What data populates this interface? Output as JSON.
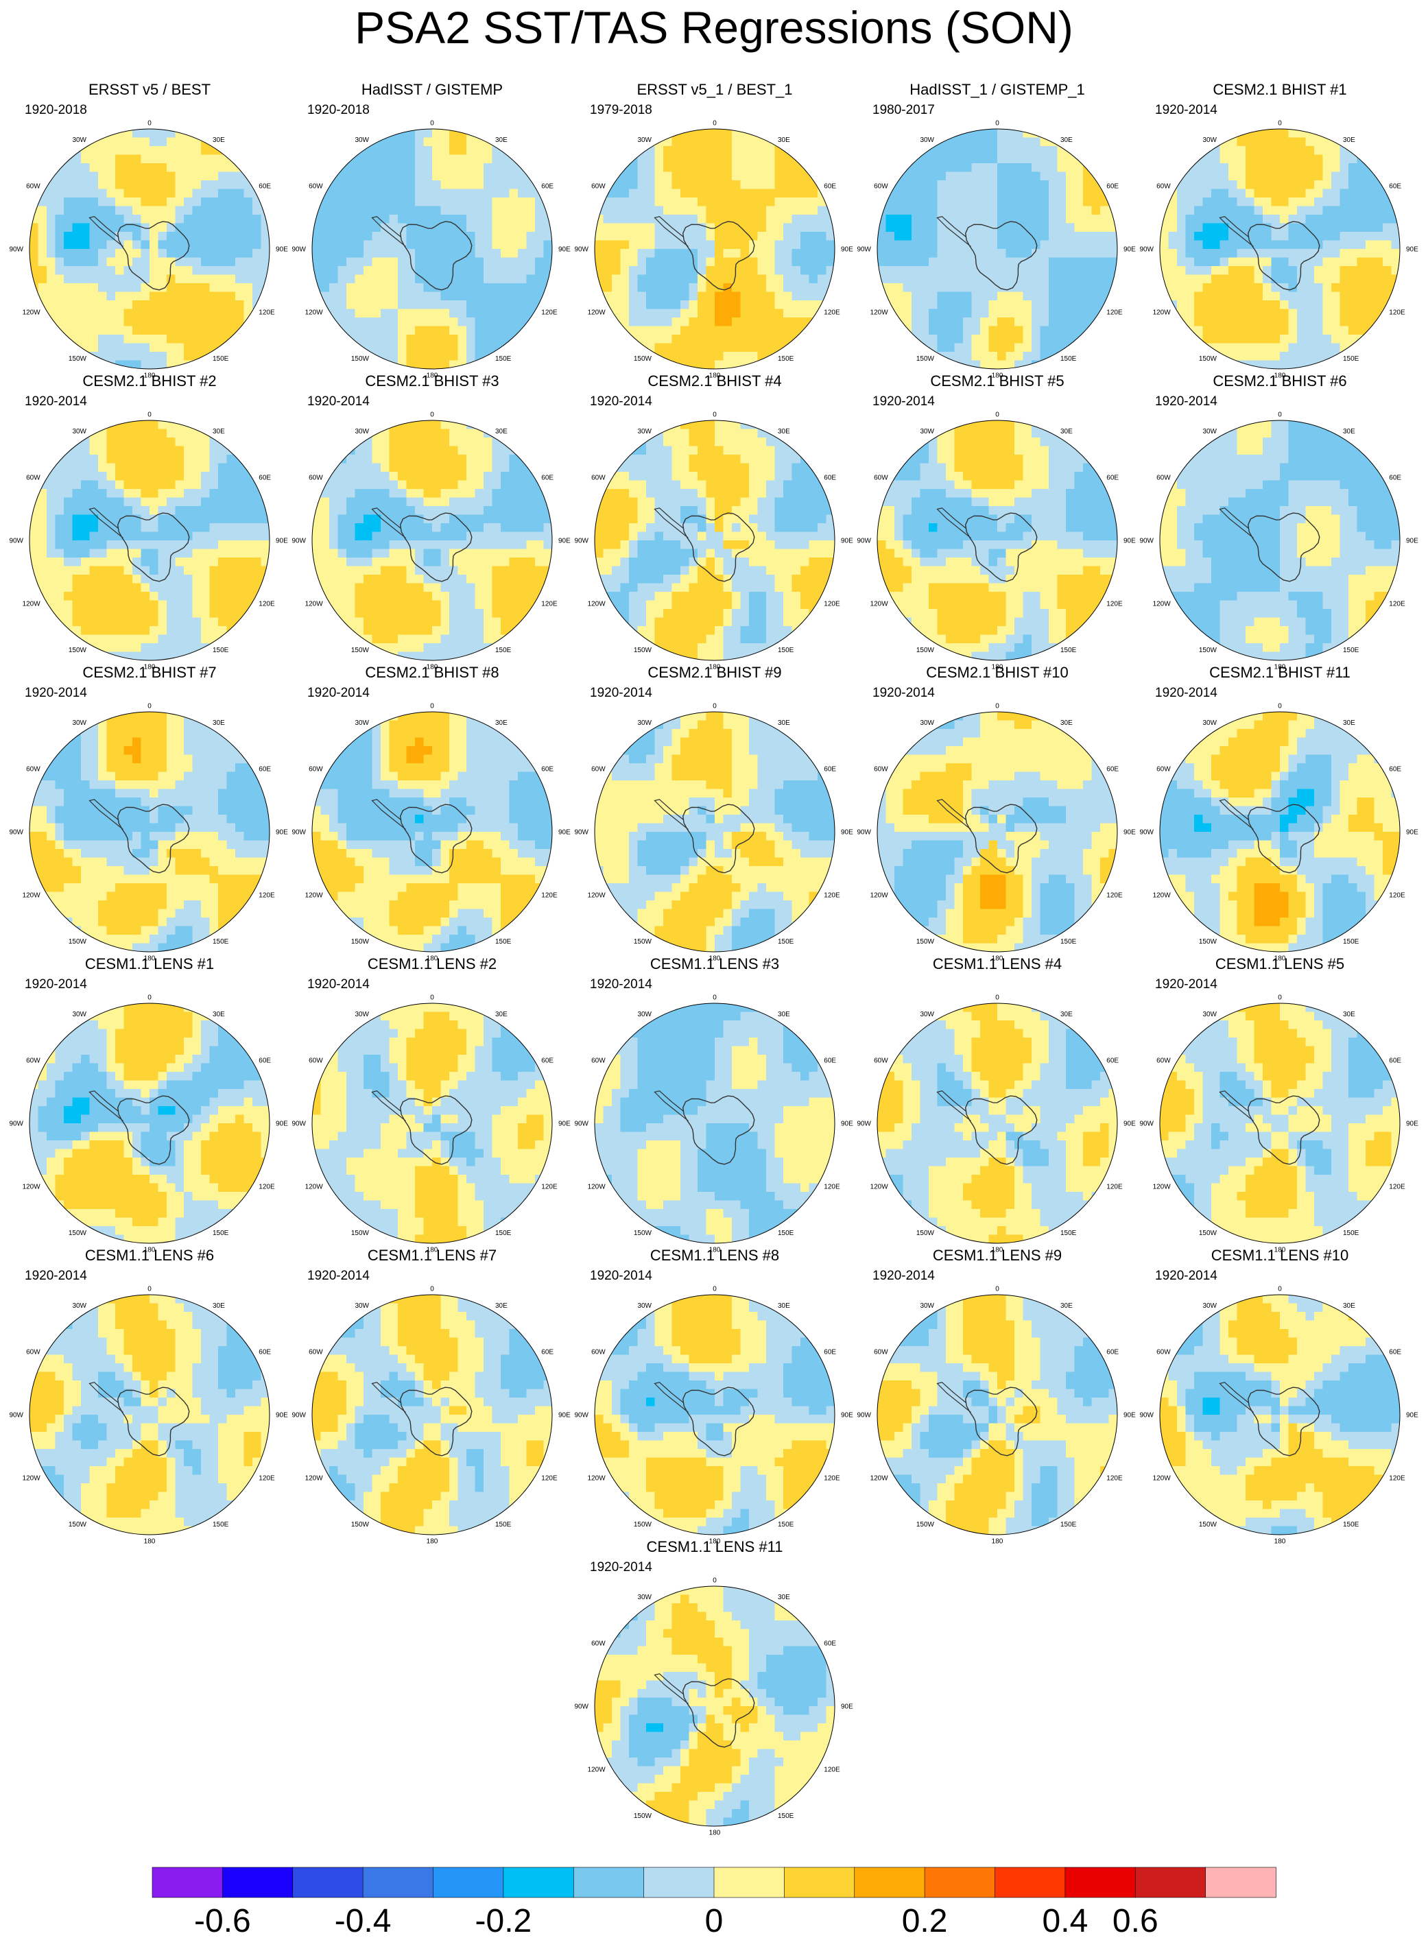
{
  "title": "PSA2 SST/TAS Regressions (SON)",
  "longitude_labels": [
    "0",
    "30E",
    "60E",
    "90E",
    "120E",
    "150E",
    "180",
    "150W",
    "120W",
    "90W",
    "60W",
    "30W"
  ],
  "panels": [
    {
      "title": "ERSST v5 / BEST",
      "years": "1920-2018",
      "pattern": "obs"
    },
    {
      "title": "HadISST / GISTEMP",
      "years": "1920-2018",
      "pattern": "cool"
    },
    {
      "title": "ERSST v5_1 / BEST_1",
      "years": "1979-2018",
      "pattern": "obs2"
    },
    {
      "title": "HadISST_1 / GISTEMP_1",
      "years": "1980-2017",
      "pattern": "cool2"
    },
    {
      "title": "CESM2.1 BHIST #1",
      "years": "1920-2014",
      "pattern": "psa"
    },
    {
      "title": "CESM2.1 BHIST #2",
      "years": "1920-2014",
      "pattern": "psa"
    },
    {
      "title": "CESM2.1 BHIST #3",
      "years": "1920-2014",
      "pattern": "psa"
    },
    {
      "title": "CESM2.1 BHIST #4",
      "years": "1920-2014",
      "pattern": "mild"
    },
    {
      "title": "CESM2.1 BHIST #5",
      "years": "1920-2014",
      "pattern": "psa"
    },
    {
      "title": "CESM2.1 BHIST #6",
      "years": "1920-2014",
      "pattern": "cool2"
    },
    {
      "title": "CESM2.1 BHIST #7",
      "years": "1920-2014",
      "pattern": "psa"
    },
    {
      "title": "CESM2.1 BHIST #8",
      "years": "1920-2014",
      "pattern": "psa"
    },
    {
      "title": "CESM2.1 BHIST #9",
      "years": "1920-2014",
      "pattern": "mild"
    },
    {
      "title": "CESM2.1 BHIST #10",
      "years": "1920-2014",
      "pattern": "mild"
    },
    {
      "title": "CESM2.1 BHIST #11",
      "years": "1920-2014",
      "pattern": "psa"
    },
    {
      "title": "CESM1.1 LENS #1",
      "years": "1920-2014",
      "pattern": "psa"
    },
    {
      "title": "CESM1.1 LENS #2",
      "years": "1920-2014",
      "pattern": "mild"
    },
    {
      "title": "CESM1.1 LENS #3",
      "years": "1920-2014",
      "pattern": "cool"
    },
    {
      "title": "CESM1.1 LENS #4",
      "years": "",
      "pattern": "mild"
    },
    {
      "title": "CESM1.1 LENS #5",
      "years": "1920-2014",
      "pattern": "mild"
    },
    {
      "title": "CESM1.1 LENS #6",
      "years": "1920-2014",
      "pattern": "mild"
    },
    {
      "title": "CESM1.1 LENS #7",
      "years": "1920-2014",
      "pattern": "mild"
    },
    {
      "title": "CESM1.1 LENS #8",
      "years": "1920-2014",
      "pattern": "psa"
    },
    {
      "title": "CESM1.1 LENS #9",
      "years": "1920-2014",
      "pattern": "mild"
    },
    {
      "title": "CESM1.1 LENS #10",
      "years": "1920-2014",
      "pattern": "obs"
    },
    {
      "title": "CESM1.1 LENS #11",
      "years": "1920-2014",
      "pattern": "mild"
    }
  ],
  "colors": {
    "continent_outline": "#333333",
    "levels": [
      {
        "min": -0.7,
        "max": -0.6,
        "color": "#8b1cf0"
      },
      {
        "min": -0.6,
        "max": -0.5,
        "color": "#1a00ff"
      },
      {
        "min": -0.5,
        "max": -0.4,
        "color": "#2e4ce6"
      },
      {
        "min": -0.4,
        "max": -0.3,
        "color": "#3a78e8"
      },
      {
        "min": -0.3,
        "max": -0.2,
        "color": "#2596f7"
      },
      {
        "min": -0.2,
        "max": -0.15,
        "color": "#00bff5"
      },
      {
        "min": -0.15,
        "max": -0.05,
        "color": "#78c8f0"
      },
      {
        "min": -0.05,
        "max": 0,
        "color": "#b5dcf0"
      },
      {
        "min": 0,
        "max": 0.05,
        "color": "#fef597"
      },
      {
        "min": 0.05,
        "max": 0.15,
        "color": "#fdd433"
      },
      {
        "min": 0.15,
        "max": 0.25,
        "color": "#feab05"
      },
      {
        "min": 0.25,
        "max": 0.35,
        "color": "#fe7704"
      },
      {
        "min": 0.35,
        "max": 0.45,
        "color": "#fe3800"
      },
      {
        "min": 0.45,
        "max": 0.55,
        "color": "#e90101"
      },
      {
        "min": 0.55,
        "max": 0.65,
        "color": "#cd1d1d"
      },
      {
        "min": 0.65,
        "max": 0.75,
        "color": "#feb4b4"
      }
    ]
  },
  "chart_data": {
    "type": "heatmap",
    "projection": "south-polar-stereographic",
    "title": "PSA2 SST/TAS Regressions (SON)",
    "colorbar": {
      "tick_labels": [
        "-0.6",
        "-0.4",
        "-0.2",
        "0",
        "0.2",
        "0.4",
        "0.6"
      ],
      "tick_values": [
        -0.6,
        -0.4,
        -0.2,
        0,
        0.2,
        0.4,
        0.6
      ],
      "levels": [
        -0.7,
        -0.6,
        -0.5,
        -0.4,
        -0.3,
        -0.2,
        -0.15,
        -0.05,
        0,
        0.05,
        0.15,
        0.25,
        0.35,
        0.45,
        0.55,
        0.65,
        0.75
      ]
    }
  }
}
